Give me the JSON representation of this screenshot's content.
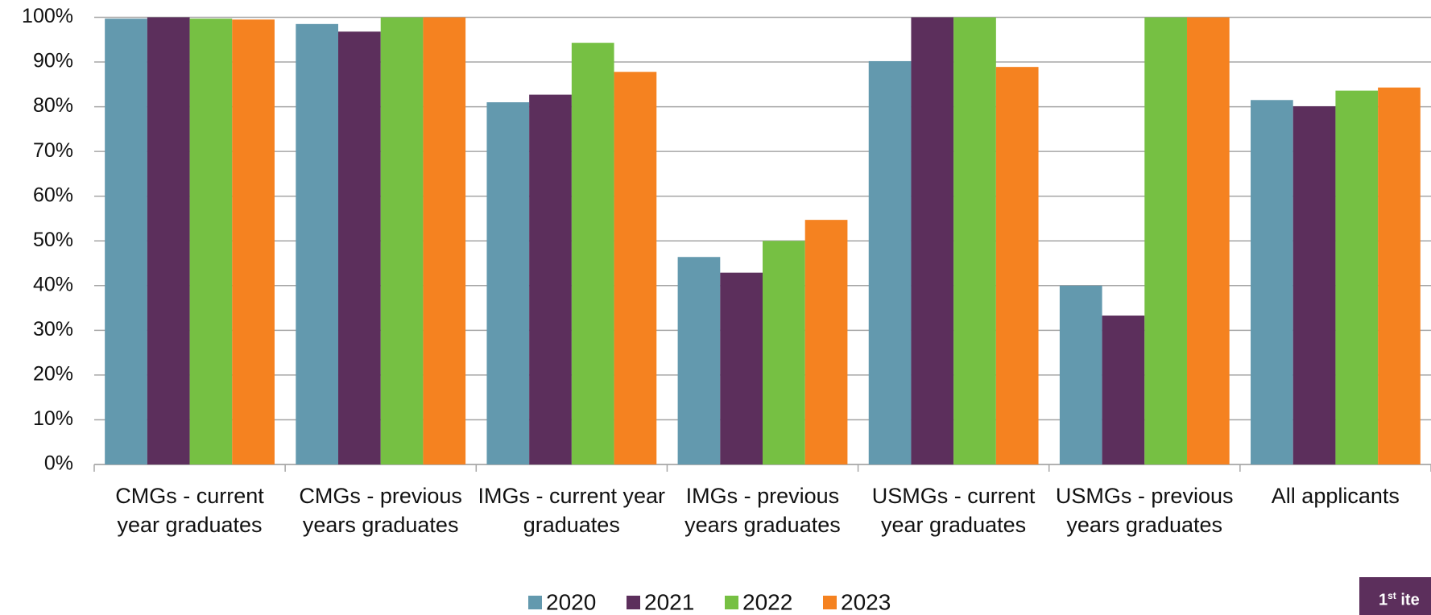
{
  "chart_data": {
    "type": "bar",
    "categories": [
      "CMGs - current year graduates",
      "CMGs - previous years graduates",
      "IMGs - current year graduates",
      "IMGs - previous years graduates",
      "USMGs - current year graduates",
      "USMGs - previous years graduates",
      "All applicants"
    ],
    "series": [
      {
        "name": "2020",
        "color": "#6399ae",
        "values": [
          99.7,
          98.5,
          81,
          46.4,
          90.2,
          40,
          81.5
        ]
      },
      {
        "name": "2021",
        "color": "#5c2f5c",
        "values": [
          100,
          96.8,
          82.7,
          42.9,
          100,
          33.3,
          80.1
        ]
      },
      {
        "name": "2022",
        "color": "#76c043",
        "values": [
          99.7,
          100,
          94.3,
          50,
          100,
          100,
          83.6
        ]
      },
      {
        "name": "2023",
        "color": "#f58220",
        "values": [
          99.5,
          100,
          87.8,
          54.7,
          88.9,
          100,
          84.3
        ]
      }
    ],
    "ylim": [
      0,
      100
    ],
    "yticks": [
      {
        "value": 0,
        "label": "0%"
      },
      {
        "value": 10,
        "label": "10%"
      },
      {
        "value": 20,
        "label": "20%"
      },
      {
        "value": 30,
        "label": "30%"
      },
      {
        "value": 40,
        "label": "40%"
      },
      {
        "value": 50,
        "label": "50%"
      },
      {
        "value": 60,
        "label": "60%"
      },
      {
        "value": 70,
        "label": "70%"
      },
      {
        "value": 80,
        "label": "80%"
      },
      {
        "value": 90,
        "label": "90%"
      },
      {
        "value": 100,
        "label": "100%"
      }
    ],
    "grid": true,
    "legend": "bottom"
  },
  "badge": {
    "number": "1",
    "suffix": "st",
    "text": "ite"
  }
}
